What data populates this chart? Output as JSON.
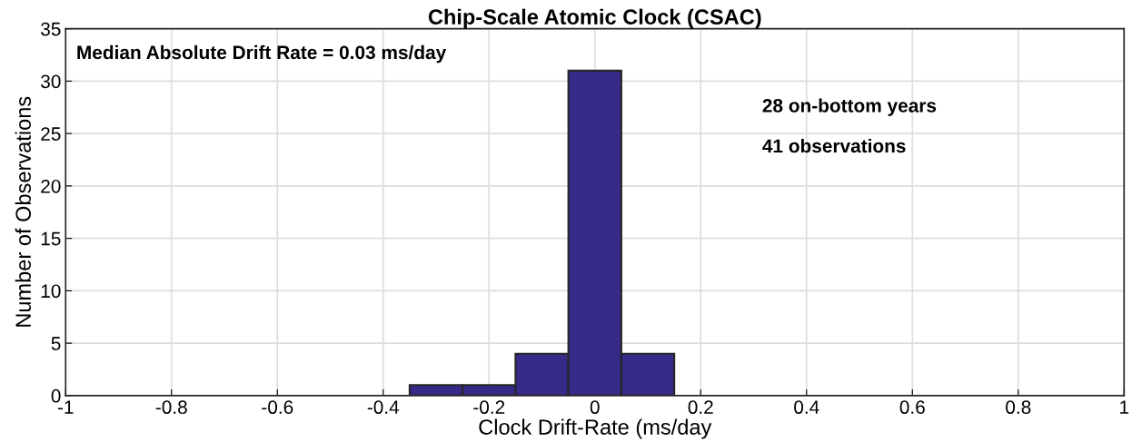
{
  "chart_data": {
    "type": "histogram",
    "title": "Chip-Scale Atomic Clock (CSAC)",
    "xlabel": "Clock Drift-Rate (ms/day",
    "ylabel": "Number of Observations",
    "bins": [
      -0.35,
      -0.25,
      -0.15,
      -0.05,
      0.05,
      0.15
    ],
    "values": [
      1,
      1,
      4,
      31,
      4
    ],
    "color": "#352a87",
    "xlim": [
      -1,
      1
    ],
    "xticks": [
      -1,
      -0.8,
      -0.6,
      -0.4,
      -0.2,
      0,
      0.2,
      0.4,
      0.6,
      0.8,
      1
    ],
    "ylim": [
      0,
      35
    ],
    "yticks": [
      0,
      5,
      10,
      15,
      20,
      25,
      30,
      35
    ],
    "grid": true,
    "annotations": [
      "Median Absolute Drift Rate = 0.03 ms/day",
      "28 on-bottom years",
      "41 observations"
    ]
  }
}
